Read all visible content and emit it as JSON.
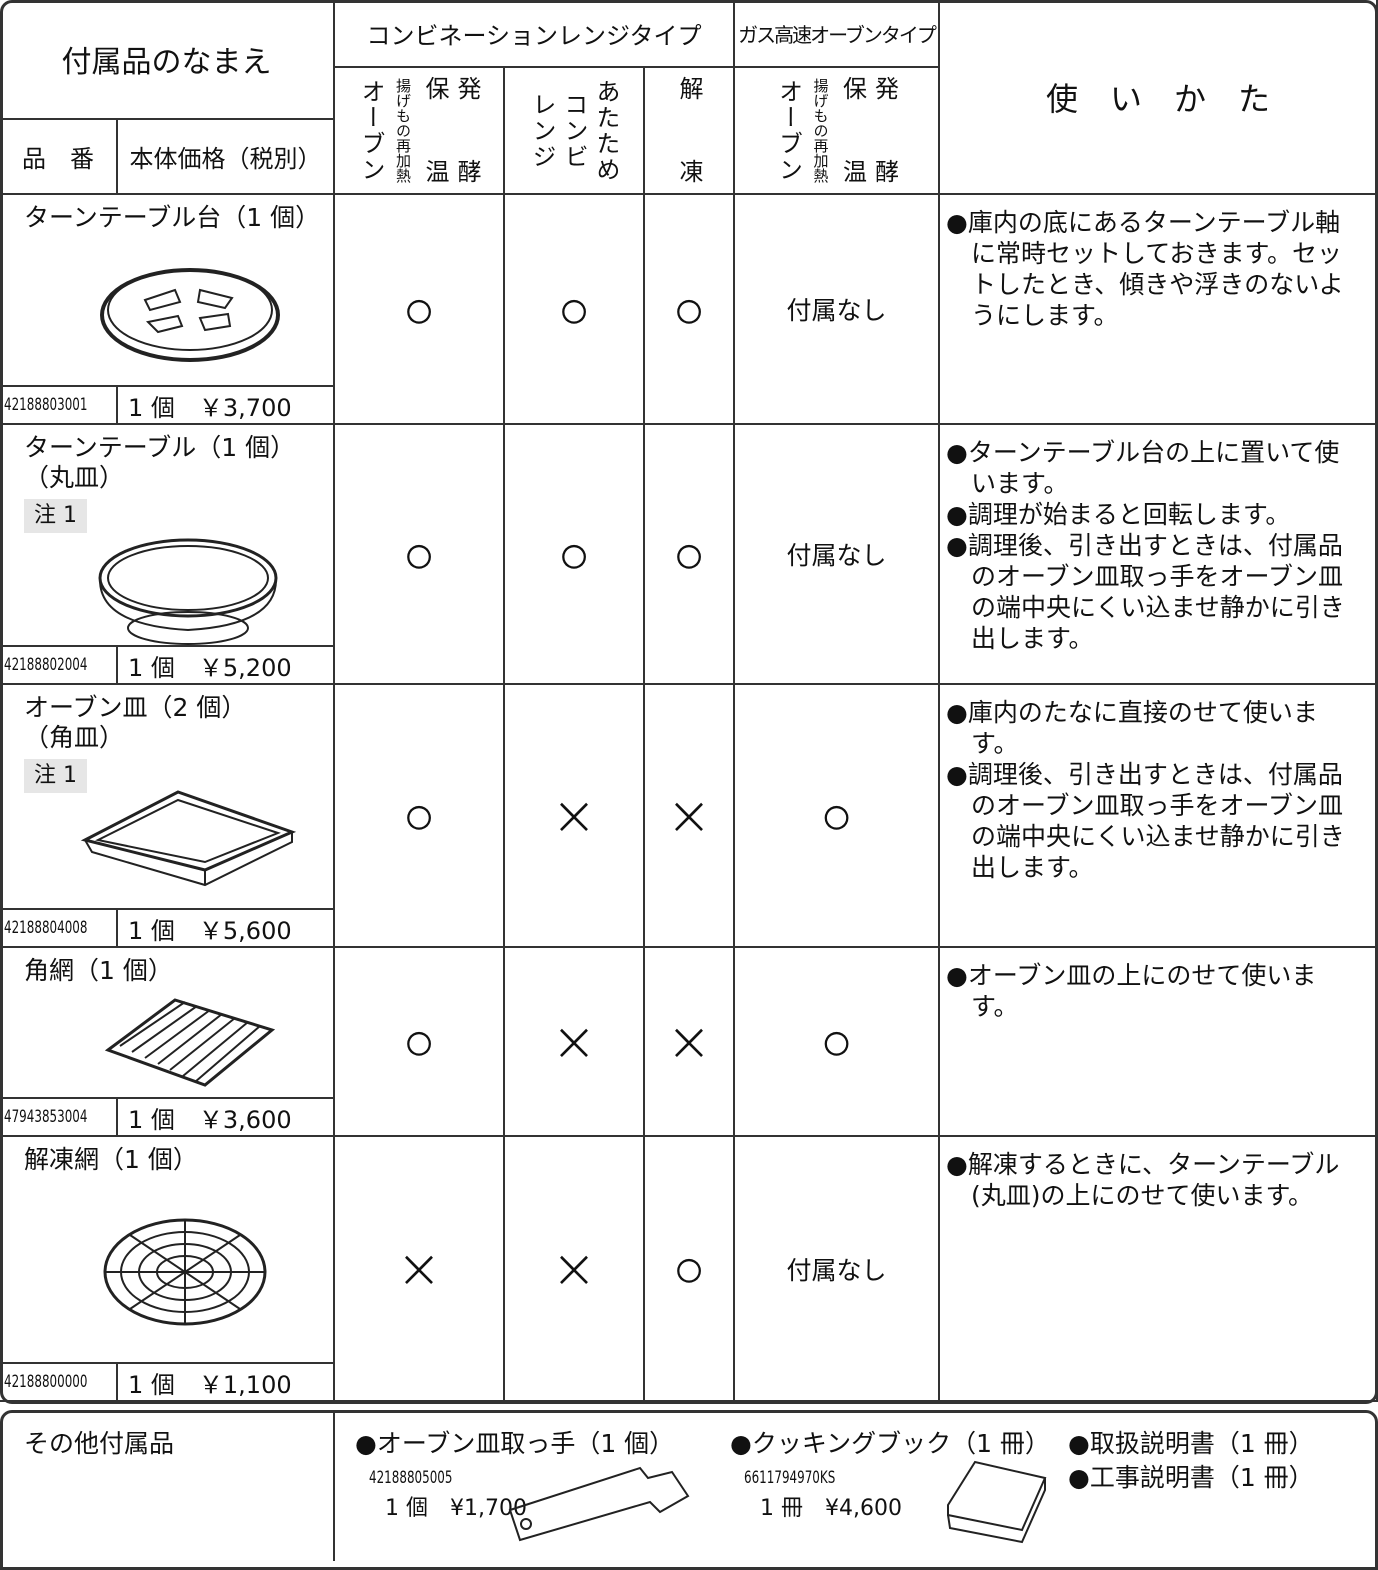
{
  "header": {
    "accessory_name": "付属品のなまえ",
    "part_number": "品　番",
    "price": "本体価格（税別）",
    "combination_type": "コンビネーションレンジタイプ",
    "gas_type": "ガス高速オーブンタイプ",
    "usage": "使　い　か　た",
    "combination_modes": [
      [
        "オーブン",
        "揚げもの再加熱",
        "保温",
        "発酵"
      ],
      [
        "レンジ",
        "コンビ",
        "あたため"
      ],
      [
        "解凍"
      ]
    ],
    "gas_modes": [
      "オーブン",
      "揚げもの再加熱",
      "保温",
      "発酵"
    ]
  },
  "rows": [
    {
      "name": "ターンテーブル台（1 個）",
      "part_number": "42188803001",
      "price": "1 個　￥3,700",
      "marks": [
        "○",
        "○",
        "○",
        "付属なし"
      ],
      "usage": [
        "●庫内の底にあるターンテーブル軸に常時セットしておきます。セットしたとき、傾きや浮きのないようにします。"
      ]
    },
    {
      "name": "ターンテーブル（1 個）",
      "subname": "（丸皿）",
      "note": "注 1",
      "part_number": "42188802004",
      "price": "1 個　￥5,200",
      "marks": [
        "○",
        "○",
        "○",
        "付属なし"
      ],
      "usage": [
        "●ターンテーブル台の上に置いて使います。",
        "●調理が始まると回転します。",
        "●調理後、引き出すときは、付属品のオーブン皿取っ手をオーブン皿の端中央にくい込ませ静かに引き出します。"
      ]
    },
    {
      "name": "オーブン皿（2 個）",
      "subname": "（角皿）",
      "note": "注 1",
      "part_number": "42188804008",
      "price": "1 個　￥5,600",
      "marks": [
        "○",
        "×",
        "×",
        "○"
      ],
      "usage": [
        "●庫内のたなに直接のせて使います。",
        "●調理後、引き出すときは、付属品のオーブン皿取っ手をオーブン皿の端中央にくい込ませ静かに引き出します。"
      ]
    },
    {
      "name": "角網（1 個）",
      "part_number": "47943853004",
      "price": "1 個　￥3,600",
      "marks": [
        "○",
        "×",
        "×",
        "○"
      ],
      "usage": [
        "●オーブン皿の上にのせて使います。"
      ]
    },
    {
      "name": "解凍網（1 個）",
      "part_number": "42188800000",
      "price": "1 個　￥1,100",
      "marks": [
        "×",
        "×",
        "○",
        "付属なし"
      ],
      "usage": [
        "●解凍するときに、ターンテーブル(丸皿)の上にのせて使います。"
      ]
    }
  ],
  "other": {
    "label": "その他付属品",
    "items": [
      {
        "name": "●オーブン皿取っ手（1 個）",
        "part_number": "42188805005",
        "price": "1 個　¥1,700"
      },
      {
        "name": "●クッキングブック（1 冊）",
        "part_number": "6611794970KS",
        "price": "1 冊　¥4,600"
      },
      {
        "name": "●取扱説明書（1 冊）"
      },
      {
        "name": "●工事説明書（1 冊）"
      }
    ]
  }
}
